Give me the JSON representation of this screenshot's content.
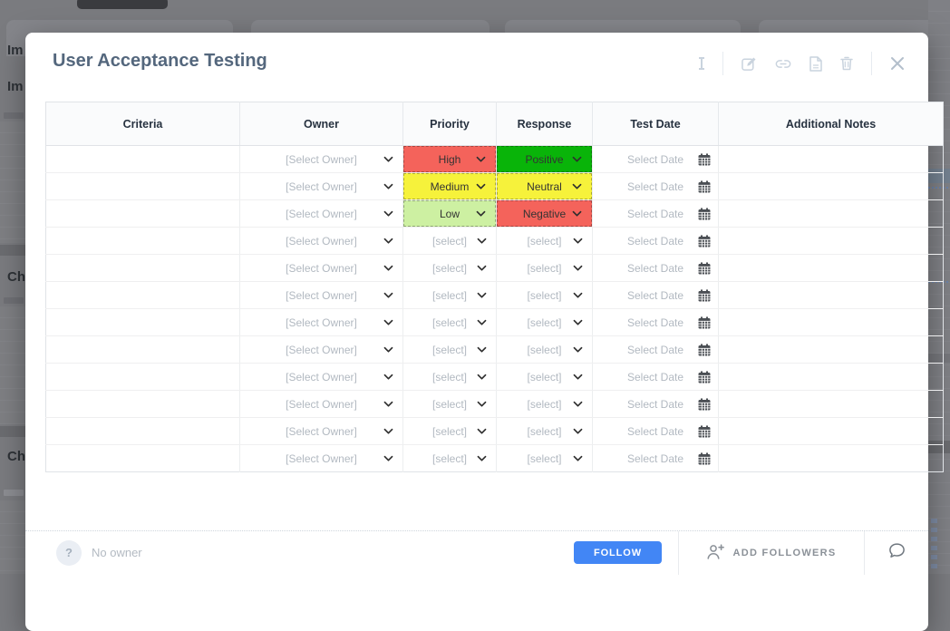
{
  "background": {
    "section_labels": [
      "Im",
      "Im",
      "Ch",
      "Ch"
    ]
  },
  "modal": {
    "title": "User Acceptance Testing",
    "toolbar_icons": [
      "text-style-icon",
      "edit-icon",
      "link-icon",
      "pdf-export-icon",
      "delete-icon",
      "close-icon"
    ]
  },
  "table": {
    "columns": [
      {
        "key": "criteria",
        "label": "Criteria"
      },
      {
        "key": "owner",
        "label": "Owner"
      },
      {
        "key": "priority",
        "label": "Priority"
      },
      {
        "key": "response",
        "label": "Response"
      },
      {
        "key": "test_date",
        "label": "Test Date"
      },
      {
        "key": "notes",
        "label": "Additional Notes"
      }
    ],
    "owner_placeholder": "[Select Owner]",
    "select_placeholder": "[select]",
    "date_placeholder": "Select Date",
    "colors": {
      "high": "#f4635b",
      "medium": "#f6f23b",
      "low": "#cdf0a2",
      "positive": "#09b409",
      "neutral": "#f6f23b",
      "negative": "#f4635b"
    },
    "rows": [
      {
        "criteria": "",
        "owner": "[Select Owner]",
        "priority": "High",
        "priority_color": "#f4635b",
        "response": "Positive",
        "response_color": "#09b409",
        "test_date": "Select Date",
        "notes": ""
      },
      {
        "criteria": "",
        "owner": "[Select Owner]",
        "priority": "Medium",
        "priority_color": "#f6f23b",
        "response": "Neutral",
        "response_color": "#f6f23b",
        "test_date": "Select Date",
        "notes": ""
      },
      {
        "criteria": "",
        "owner": "[Select Owner]",
        "priority": "Low",
        "priority_color": "#cdf0a2",
        "response": "Negative",
        "response_color": "#f4635b",
        "test_date": "Select Date",
        "notes": ""
      },
      {
        "criteria": "",
        "owner": "[Select Owner]",
        "priority": "[select]",
        "priority_color": "",
        "response": "[select]",
        "response_color": "",
        "test_date": "Select Date",
        "notes": ""
      },
      {
        "criteria": "",
        "owner": "[Select Owner]",
        "priority": "[select]",
        "priority_color": "",
        "response": "[select]",
        "response_color": "",
        "test_date": "Select Date",
        "notes": ""
      },
      {
        "criteria": "",
        "owner": "[Select Owner]",
        "priority": "[select]",
        "priority_color": "",
        "response": "[select]",
        "response_color": "",
        "test_date": "Select Date",
        "notes": ""
      },
      {
        "criteria": "",
        "owner": "[Select Owner]",
        "priority": "[select]",
        "priority_color": "",
        "response": "[select]",
        "response_color": "",
        "test_date": "Select Date",
        "notes": ""
      },
      {
        "criteria": "",
        "owner": "[Select Owner]",
        "priority": "[select]",
        "priority_color": "",
        "response": "[select]",
        "response_color": "",
        "test_date": "Select Date",
        "notes": ""
      },
      {
        "criteria": "",
        "owner": "[Select Owner]",
        "priority": "[select]",
        "priority_color": "",
        "response": "[select]",
        "response_color": "",
        "test_date": "Select Date",
        "notes": ""
      },
      {
        "criteria": "",
        "owner": "[Select Owner]",
        "priority": "[select]",
        "priority_color": "",
        "response": "[select]",
        "response_color": "",
        "test_date": "Select Date",
        "notes": ""
      },
      {
        "criteria": "",
        "owner": "[Select Owner]",
        "priority": "[select]",
        "priority_color": "",
        "response": "[select]",
        "response_color": "",
        "test_date": "Select Date",
        "notes": ""
      },
      {
        "criteria": "",
        "owner": "[Select Owner]",
        "priority": "[select]",
        "priority_color": "",
        "response": "[select]",
        "response_color": "",
        "test_date": "Select Date",
        "notes": ""
      }
    ]
  },
  "footer": {
    "avatar_char": "?",
    "no_owner": "No owner",
    "follow_label": "FOLLOW",
    "add_followers_label": "ADD FOLLOWERS"
  }
}
